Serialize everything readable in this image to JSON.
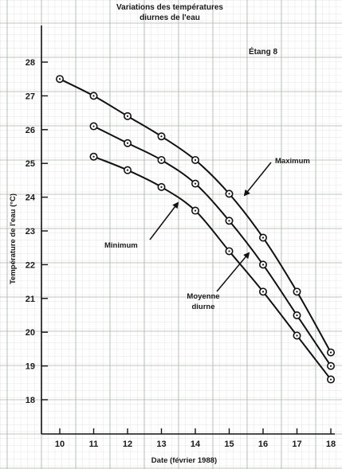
{
  "chart_data": {
    "type": "line",
    "title_line1": "Variations des températures",
    "title_line2": "diurnes de l'eau",
    "subtitle": "Étang 8",
    "xlabel": "Date (février 1988)",
    "ylabel": "Température de l'eau (°C)",
    "x": [
      10,
      11,
      12,
      13,
      14,
      15,
      16,
      17,
      18
    ],
    "x_ticks": [
      "10",
      "11",
      "12",
      "13",
      "14",
      "15",
      "16",
      "17",
      "18"
    ],
    "y_ticks": [
      "18",
      "19",
      "20",
      "21",
      "22",
      "23",
      "24",
      "25",
      "26",
      "27",
      "28"
    ],
    "xlim": [
      10,
      18
    ],
    "ylim": [
      18,
      28
    ],
    "grid": true,
    "series": [
      {
        "name": "Maximum",
        "x": [
          10,
          11,
          12,
          13,
          14,
          15,
          16,
          17,
          18
        ],
        "values": [
          27.5,
          27.0,
          26.4,
          25.8,
          25.1,
          24.1,
          22.8,
          21.2,
          19.4
        ]
      },
      {
        "name": "Moyenne diurne",
        "x": [
          11,
          12,
          13,
          14,
          15,
          16,
          17,
          18
        ],
        "values": [
          26.1,
          25.6,
          25.1,
          24.4,
          23.3,
          22.0,
          20.5,
          19.0
        ]
      },
      {
        "name": "Minimum",
        "x": [
          11,
          12,
          13,
          14,
          15,
          16,
          17,
          18
        ],
        "values": [
          25.2,
          24.8,
          24.3,
          23.6,
          22.4,
          21.2,
          19.9,
          18.6
        ]
      }
    ],
    "annotations": {
      "maximum": "Maximum",
      "minimum": "Minimum",
      "moyenne_line1": "Moyenne",
      "moyenne_line2": "diurne"
    }
  }
}
